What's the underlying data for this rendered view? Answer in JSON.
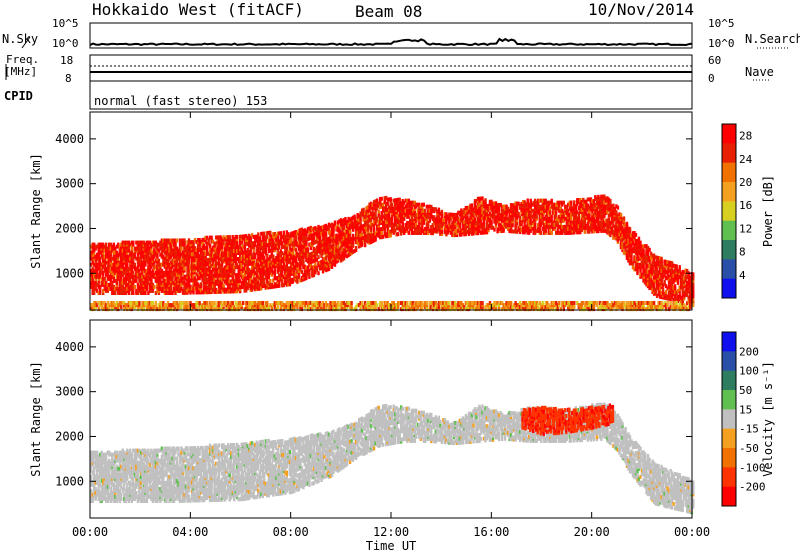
{
  "header": {
    "station": "Hokkaido West (fitACF)",
    "beam": "Beam 08",
    "date": "10/Nov/2014"
  },
  "status_panels": {
    "nsky_label": "N.Sky",
    "nsky_ticks": [
      "10^5",
      "10^0"
    ],
    "nsearch_label": "N.Search",
    "nsearch_ticks": [
      "10^5",
      "10^0"
    ],
    "freq_label": "Freq.",
    "freq_unit": "[MHz]",
    "freq_ticks": [
      "18",
      "8"
    ],
    "nave_label": "Nave",
    "nave_ticks": [
      "60",
      "0"
    ],
    "cpid_label": "CPID",
    "cpid_text": "normal (fast stereo) 153"
  },
  "chart_data": [
    {
      "type": "heatmap",
      "name": "power",
      "xlabel": "",
      "ylabel": "Slant Range [km]",
      "x_ticks": [
        "00:00",
        "04:00",
        "08:00",
        "12:00",
        "16:00",
        "20:00",
        "00:00"
      ],
      "y_ticks": [
        1000,
        2000,
        3000,
        4000
      ],
      "xlim_hours": [
        0,
        24
      ],
      "ylim": [
        180,
        4600
      ],
      "colorbar": {
        "label": "Power [dB]",
        "ticks": [
          4,
          8,
          12,
          16,
          20,
          24,
          28
        ],
        "range": [
          0,
          30
        ],
        "colors": [
          "#1010ee",
          "#2a4fa8",
          "#2f7d60",
          "#5fbf4f",
          "#d8d020",
          "#f5a020",
          "#f07000",
          "#e82000",
          "#ff0000"
        ]
      },
      "bands": [
        {
          "t": [
            0,
            3.5,
            6,
            8,
            9.5,
            10.5,
            11.5,
            12.5,
            13.5,
            14.5,
            15.5,
            16.5,
            17.5,
            19,
            20.5,
            21,
            21.5,
            22.5,
            24
          ],
          "lo": [
            560,
            560,
            600,
            760,
            1100,
            1500,
            1800,
            1900,
            1900,
            1850,
            1900,
            1950,
            1900,
            1900,
            1950,
            1700,
            1200,
            500,
            300
          ],
          "hi": [
            1650,
            1750,
            1850,
            1950,
            2100,
            2300,
            2700,
            2650,
            2500,
            2300,
            2700,
            2500,
            2650,
            2600,
            2750,
            2500,
            2000,
            1400,
            1000
          ],
          "level": 27
        },
        {
          "t": [
            0,
            24
          ],
          "lo": [
            200,
            200
          ],
          "hi": [
            380,
            380
          ],
          "level": 20
        }
      ]
    },
    {
      "type": "heatmap",
      "name": "velocity",
      "xlabel": "Time UT",
      "ylabel": "Slant Range [km]",
      "x_ticks": [
        "00:00",
        "04:00",
        "08:00",
        "12:00",
        "16:00",
        "20:00",
        "00:00"
      ],
      "y_ticks": [
        1000,
        2000,
        3000,
        4000
      ],
      "xlim_hours": [
        0,
        24
      ],
      "ylim": [
        180,
        4600
      ],
      "colorbar": {
        "label": "Velocity [m s⁻¹]",
        "ticks": [
          200,
          100,
          50,
          15,
          -15,
          -50,
          -100,
          -200
        ],
        "range": [
          -250,
          250
        ],
        "colors": [
          "#ff0000",
          "#ff3300",
          "#f07000",
          "#f5a020",
          "#c0c0c0",
          "#5fbf4f",
          "#2f7d60",
          "#2a4fa8",
          "#1010ee"
        ]
      },
      "bands": [
        {
          "t": [
            0,
            3.5,
            6,
            8,
            9.5,
            10.5,
            11.5,
            12.5,
            13.5,
            14.5,
            15.5,
            16.5,
            17.5,
            19,
            20.5,
            21,
            21.5,
            22.5,
            24
          ],
          "lo": [
            560,
            560,
            600,
            760,
            1100,
            1500,
            1800,
            1900,
            1900,
            1850,
            1900,
            1950,
            1900,
            1900,
            1950,
            1700,
            1200,
            500,
            300
          ],
          "hi": [
            1650,
            1750,
            1850,
            1950,
            2100,
            2300,
            2700,
            2650,
            2500,
            2300,
            2700,
            2500,
            2650,
            2600,
            2750,
            2500,
            2000,
            1400,
            1000
          ],
          "level": 0
        },
        {
          "t": [
            17.2,
            18,
            19,
            20,
            20.8
          ],
          "lo": [
            2200,
            2050,
            2100,
            2200,
            2300
          ],
          "hi": [
            2600,
            2650,
            2600,
            2650,
            2700
          ],
          "level": -180
        }
      ]
    }
  ]
}
